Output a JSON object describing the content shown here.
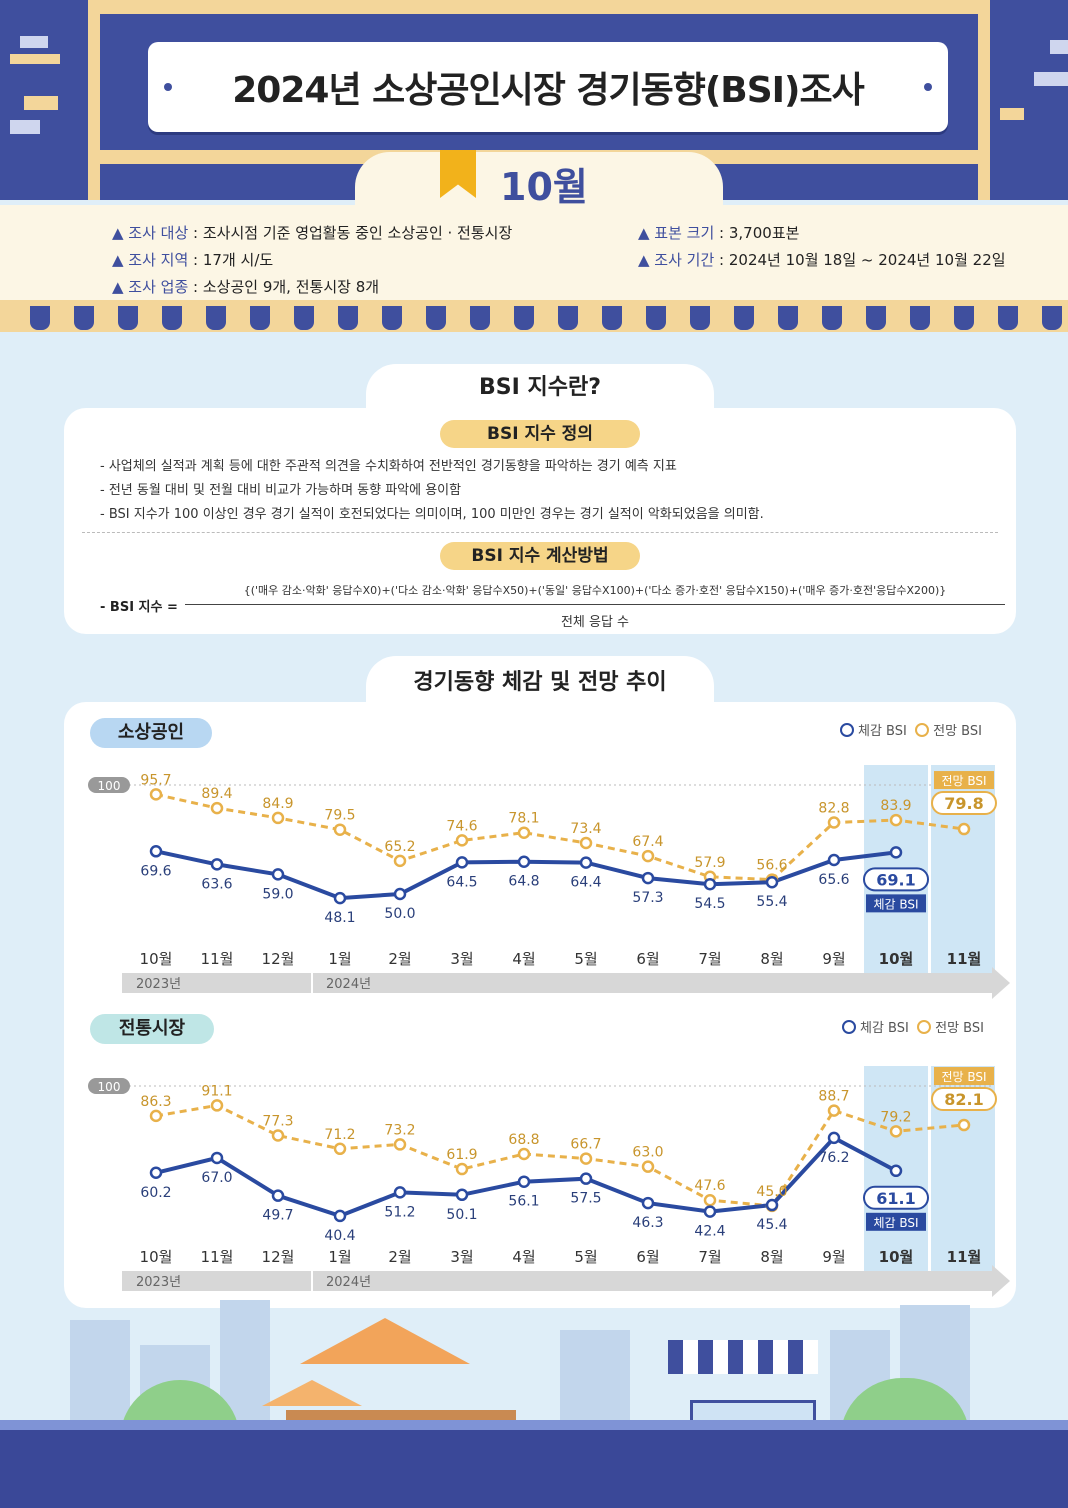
{
  "header": {
    "title": "2024년 소상공인시장 경기동향(BSI)조사",
    "month": "10월"
  },
  "info": {
    "target_label": "▲ 조사 대상",
    "target_value": " : 조사시점 기준 영업활동 중인 소상공인 · 전통시장",
    "region_label": "▲ 조사 지역",
    "region_value": " : 17개 시/도",
    "industry_label": "▲ 조사 업종",
    "industry_value": " : 소상공인 9개, 전통시장 8개",
    "sample_label": "▲ 표본 크기",
    "sample_value": " : 3,700표본",
    "period_label": "▲ 조사 기간",
    "period_value": " : 2024년 10월 18일 ~ 2024년 10월 22일"
  },
  "bsi_section": {
    "tab": "BSI 지수란?",
    "def_title": "BSI 지수 정의",
    "def_lines": [
      "- 사업체의 실적과 계획 등에 대한 주관적 의견을 수치화하여 전반적인 경기동향을 파악하는 경기 예측 지표",
      "- 전년 동월 대비 및 전월 대비 비교가 가능하며 동향 파악에 용이함",
      "- BSI 지수가 100 이상인 경우 경기 실적이 호전되었다는 의미이며, 100 미만인 경우는 경기 실적이 악화되었음을 의미함."
    ],
    "calc_title": "BSI 지수 계산방법",
    "formula_label": "- BSI 지수 =",
    "numerator": "{('매우 감소·악화' 응답수X0)+('다소 감소·악화' 응답수X50)+('동일' 응답수X100)+('다소 증가·호전' 응답수X150)+('매우 증가·호전'응답수X200)}",
    "denominator": "전체 응답 수"
  },
  "trend_section": {
    "tab": "경기동향 체감 및 전망 추이"
  },
  "colors": {
    "navy": "#2a4aa0",
    "gold": "#e8b14a",
    "header": "#3f4f9e",
    "highlight": "#cfe6f5"
  },
  "chart_data": [
    {
      "type": "line",
      "title": "소상공인",
      "categories": [
        "10월",
        "11월",
        "12월",
        "1월",
        "2월",
        "3월",
        "4월",
        "5월",
        "6월",
        "7월",
        "8월",
        "9월",
        "10월",
        "11월"
      ],
      "year_labels": [
        "2023년",
        "2024년"
      ],
      "reference": {
        "label": "100",
        "value": 100
      },
      "legend": [
        "체감 BSI",
        "전망 BSI"
      ],
      "series": [
        {
          "name": "체감 BSI",
          "values": [
            69.6,
            63.6,
            59.0,
            48.1,
            50.0,
            64.5,
            64.8,
            64.4,
            57.3,
            54.5,
            55.4,
            65.6,
            69.1,
            null
          ]
        },
        {
          "name": "전망 BSI",
          "values": [
            95.7,
            89.4,
            84.9,
            79.5,
            65.2,
            74.6,
            78.1,
            73.4,
            67.4,
            57.9,
            56.6,
            82.8,
            83.9,
            79.8
          ]
        }
      ],
      "callouts": {
        "current_tag": "체감 BSI",
        "current_value": "69.1",
        "forecast_tag": "전망 BSI",
        "forecast_value": "79.8"
      }
    },
    {
      "type": "line",
      "title": "전통시장",
      "categories": [
        "10월",
        "11월",
        "12월",
        "1월",
        "2월",
        "3월",
        "4월",
        "5월",
        "6월",
        "7월",
        "8월",
        "9월",
        "10월",
        "11월"
      ],
      "year_labels": [
        "2023년",
        "2024년"
      ],
      "reference": {
        "label": "100",
        "value": 100
      },
      "legend": [
        "체감 BSI",
        "전망 BSI"
      ],
      "series": [
        {
          "name": "체감 BSI",
          "values": [
            60.2,
            67.0,
            49.7,
            40.4,
            51.2,
            50.1,
            56.1,
            57.5,
            46.3,
            42.4,
            45.4,
            76.2,
            61.1,
            null
          ]
        },
        {
          "name": "전망 BSI",
          "values": [
            86.3,
            91.1,
            77.3,
            71.2,
            73.2,
            61.9,
            68.8,
            66.7,
            63.0,
            47.6,
            45.0,
            88.7,
            79.2,
            82.1
          ]
        }
      ],
      "callouts": {
        "current_tag": "체감 BSI",
        "current_value": "61.1",
        "forecast_tag": "전망 BSI",
        "forecast_value": "82.1"
      }
    }
  ]
}
